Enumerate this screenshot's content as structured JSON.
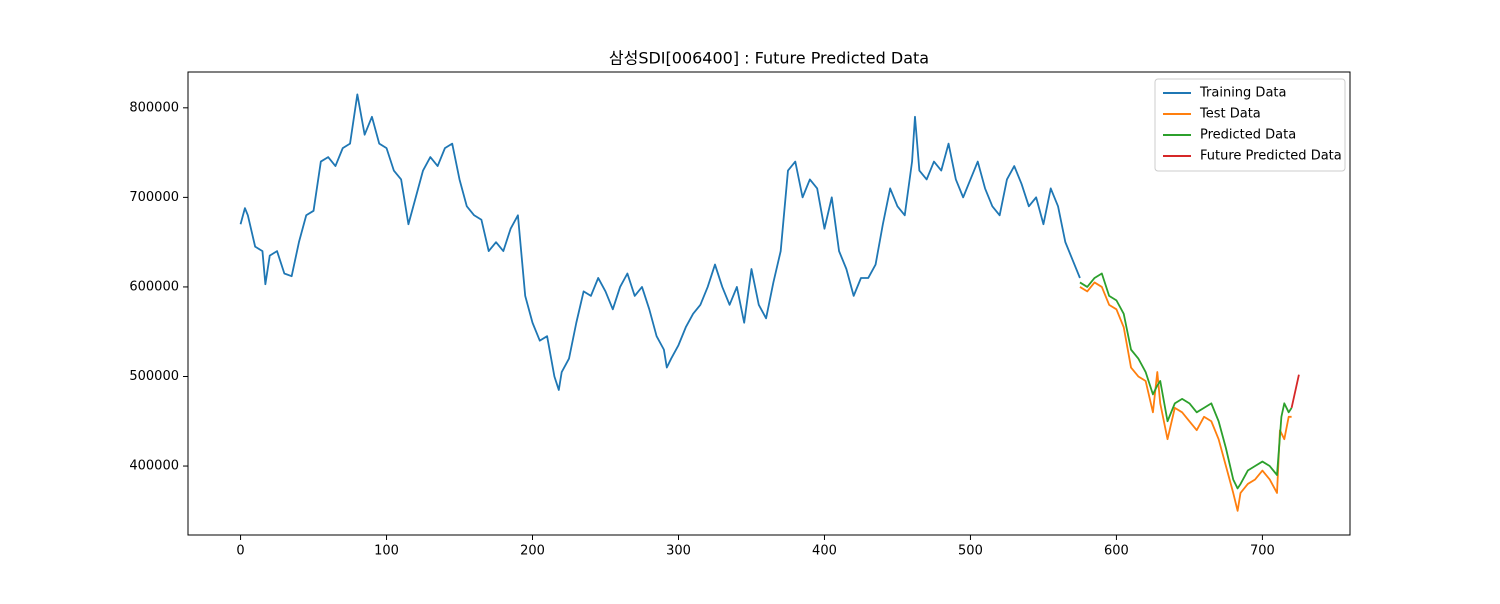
{
  "chart_data": {
    "type": "line",
    "title": "삼성SDI[006400] : Future Predicted Data",
    "series": [
      {
        "name": "Training Data",
        "color": "#1f77b4",
        "x": [
          0,
          3,
          5,
          10,
          15,
          17,
          20,
          25,
          30,
          35,
          40,
          45,
          50,
          55,
          60,
          65,
          70,
          75,
          80,
          85,
          90,
          95,
          100,
          105,
          110,
          115,
          120,
          125,
          130,
          135,
          140,
          145,
          150,
          155,
          160,
          165,
          170,
          175,
          180,
          185,
          190,
          195,
          200,
          205,
          210,
          215,
          218,
          220,
          225,
          230,
          235,
          240,
          245,
          250,
          255,
          260,
          265,
          270,
          275,
          280,
          285,
          290,
          292,
          295,
          300,
          305,
          310,
          315,
          320,
          325,
          330,
          335,
          340,
          345,
          350,
          355,
          360,
          365,
          370,
          375,
          380,
          385,
          390,
          395,
          400,
          405,
          410,
          415,
          420,
          425,
          430,
          435,
          440,
          445,
          450,
          455,
          460,
          462,
          465,
          470,
          475,
          480,
          485,
          490,
          495,
          500,
          505,
          510,
          515,
          520,
          525,
          530,
          535,
          540,
          545,
          550,
          555,
          560,
          565,
          570,
          575
        ],
        "values": [
          670000,
          688000,
          680000,
          645000,
          640000,
          603000,
          635000,
          640000,
          615000,
          612000,
          650000,
          680000,
          685000,
          740000,
          745000,
          735000,
          755000,
          760000,
          815000,
          770000,
          790000,
          760000,
          755000,
          730000,
          720000,
          670000,
          700000,
          730000,
          745000,
          735000,
          755000,
          760000,
          720000,
          690000,
          680000,
          675000,
          640000,
          650000,
          640000,
          665000,
          680000,
          590000,
          560000,
          540000,
          545000,
          500000,
          485000,
          505000,
          520000,
          560000,
          595000,
          590000,
          610000,
          595000,
          575000,
          600000,
          615000,
          590000,
          600000,
          575000,
          545000,
          530000,
          510000,
          520000,
          535000,
          555000,
          570000,
          580000,
          600000,
          625000,
          600000,
          580000,
          600000,
          560000,
          620000,
          580000,
          565000,
          605000,
          640000,
          730000,
          740000,
          700000,
          720000,
          710000,
          665000,
          700000,
          640000,
          620000,
          590000,
          610000,
          610000,
          625000,
          670000,
          710000,
          690000,
          680000,
          740000,
          790000,
          730000,
          720000,
          740000,
          730000,
          760000,
          720000,
          700000,
          720000,
          740000,
          710000,
          690000,
          680000,
          720000,
          735000,
          715000,
          690000,
          700000,
          670000,
          710000,
          690000,
          650000,
          630000,
          610000
        ]
      },
      {
        "name": "Test Data",
        "color": "#ff7f0e",
        "x": [
          575,
          580,
          585,
          590,
          595,
          600,
          605,
          610,
          615,
          620,
          625,
          628,
          630,
          635,
          640,
          645,
          650,
          655,
          660,
          665,
          670,
          675,
          680,
          683,
          685,
          690,
          695,
          700,
          705,
          710,
          712,
          715,
          718,
          720
        ],
        "values": [
          600000,
          595000,
          605000,
          600000,
          580000,
          575000,
          555000,
          510000,
          500000,
          495000,
          460000,
          505000,
          470000,
          430000,
          465000,
          460000,
          450000,
          440000,
          455000,
          450000,
          430000,
          400000,
          370000,
          350000,
          370000,
          380000,
          385000,
          395000,
          385000,
          370000,
          440000,
          430000,
          455000,
          455000
        ]
      },
      {
        "name": "Predicted Data",
        "color": "#2ca02c",
        "x": [
          575,
          580,
          585,
          590,
          595,
          600,
          605,
          610,
          615,
          620,
          625,
          628,
          630,
          635,
          640,
          645,
          650,
          655,
          660,
          665,
          670,
          675,
          680,
          683,
          685,
          690,
          695,
          700,
          705,
          710,
          713,
          715,
          718,
          720
        ],
        "values": [
          605000,
          600000,
          610000,
          615000,
          590000,
          585000,
          570000,
          530000,
          520000,
          505000,
          480000,
          490000,
          495000,
          450000,
          470000,
          475000,
          470000,
          460000,
          465000,
          470000,
          450000,
          420000,
          385000,
          375000,
          380000,
          395000,
          400000,
          405000,
          400000,
          390000,
          455000,
          470000,
          460000,
          465000
        ]
      },
      {
        "name": "Future Predicted Data",
        "color": "#d62728",
        "x": [
          720,
          725
        ],
        "values": [
          465000,
          502000
        ]
      }
    ],
    "xlim": [
      -36,
      760
    ],
    "ylim": [
      323000,
      840000
    ],
    "xticks": [
      0,
      100,
      200,
      300,
      400,
      500,
      600,
      700
    ],
    "yticks": [
      400000,
      500000,
      600000,
      700000,
      800000
    ],
    "legend": "upper right"
  }
}
